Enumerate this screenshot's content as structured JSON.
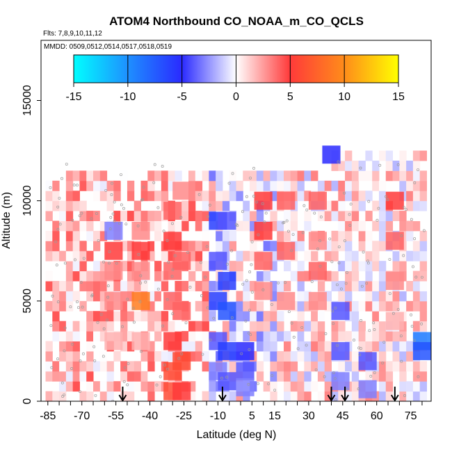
{
  "chart_data": {
    "type": "heatmap",
    "title": "ATOM4 Northbound CO_NOAA_m_CO_QCLS",
    "flights_label": "Flts: 7,8,9,10,11,12",
    "dates_label": "MMDD: 0509,0512,0514,0517,0518,0519",
    "xlabel": "Latitude (deg N)",
    "ylabel": "Altitude (m)",
    "xlim": [
      -88,
      84
    ],
    "ylim": [
      0,
      18000
    ],
    "x_ticks": [
      -85,
      -70,
      -55,
      -40,
      -25,
      -10,
      5,
      15,
      30,
      45,
      60,
      75
    ],
    "y_ticks": [
      0,
      5000,
      10000,
      15000
    ],
    "colorbar": {
      "ticks": [
        -15,
        -10,
        -5,
        0,
        5,
        10,
        15
      ],
      "range": [
        -15,
        15
      ],
      "colors": [
        "#00ffff",
        "#1e90ff",
        "#2a2aff",
        "#ffffff",
        "#ff3a3a",
        "#ff8c1a",
        "#ffff00"
      ]
    },
    "arrow_latitudes": [
      -52,
      -8,
      40,
      46,
      68
    ],
    "cells": [
      [
        -56,
        8500,
        -3
      ],
      [
        -56,
        7500,
        5
      ],
      [
        -56,
        6500,
        3
      ],
      [
        -56,
        5000,
        3
      ],
      [
        -56,
        3000,
        2
      ],
      [
        -44,
        5000,
        9
      ],
      [
        -44,
        6500,
        3
      ],
      [
        -44,
        7500,
        5
      ],
      [
        -44,
        8500,
        3
      ],
      [
        -44,
        3000,
        2
      ],
      [
        -30,
        9500,
        4
      ],
      [
        -30,
        8000,
        5
      ],
      [
        -30,
        6500,
        4
      ],
      [
        -30,
        5000,
        4
      ],
      [
        -30,
        3000,
        5
      ],
      [
        -30,
        1500,
        6
      ],
      [
        -30,
        500,
        6
      ],
      [
        -26,
        10500,
        3
      ],
      [
        -26,
        7000,
        4
      ],
      [
        -26,
        4500,
        4
      ],
      [
        -26,
        2000,
        6
      ],
      [
        -26,
        500,
        5
      ],
      [
        -10,
        9000,
        -6
      ],
      [
        -10,
        7000,
        -4
      ],
      [
        -10,
        5000,
        -6
      ],
      [
        -10,
        3000,
        -4
      ],
      [
        -10,
        1500,
        -3
      ],
      [
        -6,
        9000,
        -4
      ],
      [
        -6,
        6000,
        -6
      ],
      [
        -6,
        4500,
        -7
      ],
      [
        -6,
        2500,
        -6
      ],
      [
        -6,
        1000,
        -4
      ],
      [
        2,
        2500,
        -5
      ],
      [
        2,
        1500,
        -4
      ],
      [
        2,
        700,
        -3
      ],
      [
        10,
        10000,
        5
      ],
      [
        10,
        8500,
        5
      ],
      [
        10,
        7000,
        4
      ],
      [
        10,
        5500,
        3
      ],
      [
        20,
        10000,
        4
      ],
      [
        20,
        7500,
        4
      ],
      [
        20,
        5000,
        3
      ],
      [
        34,
        10000,
        4
      ],
      [
        34,
        8000,
        3
      ],
      [
        34,
        6500,
        4
      ],
      [
        34,
        5000,
        3
      ],
      [
        40,
        12300,
        -5
      ],
      [
        44,
        4500,
        -4
      ],
      [
        44,
        2500,
        -4
      ],
      [
        44,
        1000,
        -3
      ],
      [
        56,
        2000,
        -4
      ],
      [
        56,
        600,
        -3
      ],
      [
        68,
        10000,
        5
      ],
      [
        68,
        8000,
        4
      ],
      [
        68,
        6000,
        3
      ],
      [
        68,
        4000,
        2
      ],
      [
        80,
        3000,
        -9
      ],
      [
        80,
        2500,
        -7
      ]
    ]
  }
}
